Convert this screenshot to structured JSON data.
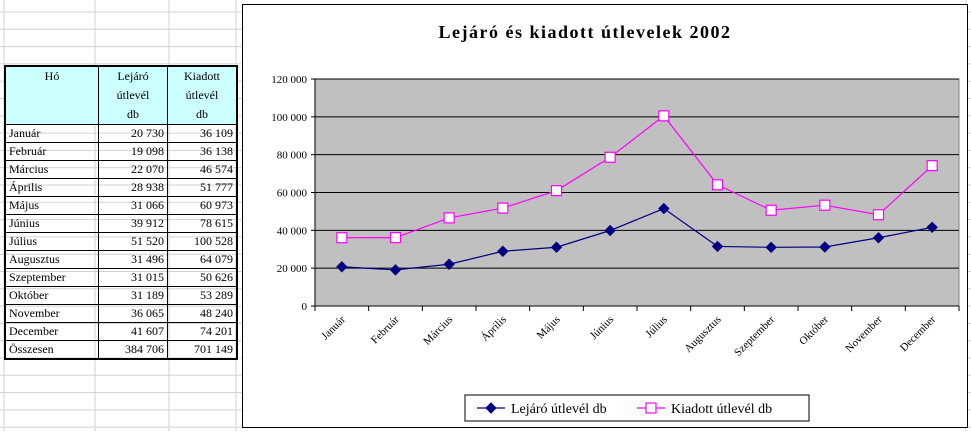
{
  "table": {
    "headers": [
      "Hó",
      "Lejáró útlevél db",
      "Kiadott útlevél db"
    ],
    "rows": [
      [
        "Január",
        "20 730",
        "36 109"
      ],
      [
        "Február",
        "19 098",
        "36 138"
      ],
      [
        "Március",
        "22 070",
        "46 574"
      ],
      [
        "Április",
        "28 938",
        "51 777"
      ],
      [
        "Május",
        "31 066",
        "60 973"
      ],
      [
        "Június",
        "39 912",
        "78 615"
      ],
      [
        "Július",
        "51 520",
        "100 528"
      ],
      [
        "Augusztus",
        "31 496",
        "64 079"
      ],
      [
        "Szeptember",
        "31 015",
        "50 626"
      ],
      [
        "Október",
        "31 189",
        "53 289"
      ],
      [
        "November",
        "36 065",
        "48 240"
      ],
      [
        "December",
        "41 607",
        "74 201"
      ],
      [
        "Összesen",
        "384 706",
        "701 149"
      ]
    ]
  },
  "chart_data": {
    "type": "line",
    "title": "Lejáró és kiadott útlevelek 2002",
    "categories": [
      "Január",
      "Február",
      "Március",
      "Április",
      "Május",
      "Június",
      "Július",
      "Augusztus",
      "Szeptember",
      "Október",
      "November",
      "December"
    ],
    "series": [
      {
        "name": "Lejáró útlevél db",
        "color": "#000080",
        "marker": "diamond",
        "values": [
          20730,
          19098,
          22070,
          28938,
          31066,
          39912,
          51520,
          31496,
          31015,
          31189,
          36065,
          41607
        ]
      },
      {
        "name": "Kiadott útlevél db",
        "color": "#ff00ff",
        "marker": "square",
        "values": [
          36109,
          36138,
          46574,
          51777,
          60973,
          78615,
          100528,
          64079,
          50626,
          53289,
          48240,
          74201
        ]
      }
    ],
    "ylim": [
      0,
      120000
    ],
    "yticks": [
      0,
      20000,
      40000,
      60000,
      80000,
      100000,
      120000
    ],
    "ytick_labels": [
      "0",
      "20 000",
      "40 000",
      "60 000",
      "80 000",
      "100 000",
      "120 000"
    ],
    "plot_background": "#c0c0c0",
    "grid": true,
    "legend_position": "bottom",
    "xlabel": "",
    "ylabel": ""
  }
}
